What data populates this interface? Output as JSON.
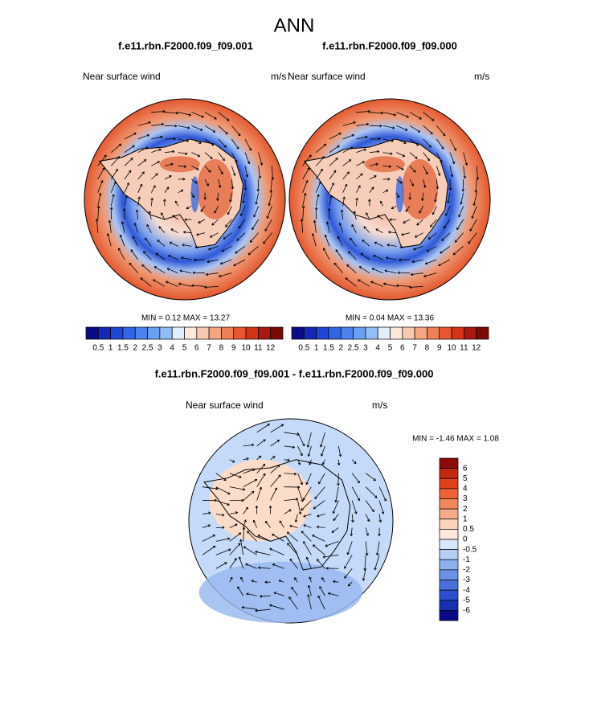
{
  "title": "ANN",
  "panels": [
    {
      "title": "f.e11.rbn.F2000.f09_f09.001",
      "left_label": "Near surface wind",
      "units": "m/s",
      "stats": "MIN =  0.12 MAX =  13.27"
    },
    {
      "title": "f.e11.rbn.F2000.f09_f09.000",
      "left_label": "Near surface wind",
      "units": "m/s",
      "stats": "MIN =  0.04 MAX =  13.36"
    }
  ],
  "colorbar": {
    "labels": [
      "0.5",
      "1",
      "1.5",
      "2",
      "2.5",
      "3",
      "4",
      "5",
      "6",
      "7",
      "8",
      "9",
      "10",
      "11",
      "12"
    ],
    "colors": [
      "#0b0b85",
      "#1528b5",
      "#2046d8",
      "#3264e6",
      "#4b82ee",
      "#6a9ff2",
      "#92bdf6",
      "#e3eefc",
      "#fde8dc",
      "#f9c9ae",
      "#f4a581",
      "#ef7f55",
      "#e8572f",
      "#d43418",
      "#a81910",
      "#7a0a08"
    ]
  },
  "difference": {
    "title": "f.e11.rbn.F2000.f09_f09.001 - f.e11.rbn.F2000.f09_f09.000",
    "left_label": "Near surface wind",
    "units": "m/s",
    "stats": "MIN = -1.46 MAX =  1.08",
    "colorbar": {
      "labels": [
        "6",
        "5",
        "4",
        "3",
        "2",
        "1",
        "0.5",
        "0",
        "-0.5",
        "-1",
        "-2",
        "-3",
        "-4",
        "-5",
        "-6"
      ],
      "colors": [
        "#8b0a0a",
        "#c0290f",
        "#e0401a",
        "#ee6236",
        "#f3875c",
        "#f6ab88",
        "#fbd3bd",
        "#fde9dd",
        "#d6e6fb",
        "#b3cff6",
        "#8cb1ef",
        "#6a92e8",
        "#4a70e0",
        "#2c4fd2",
        "#1630b0",
        "#0a0a88"
      ]
    }
  }
}
